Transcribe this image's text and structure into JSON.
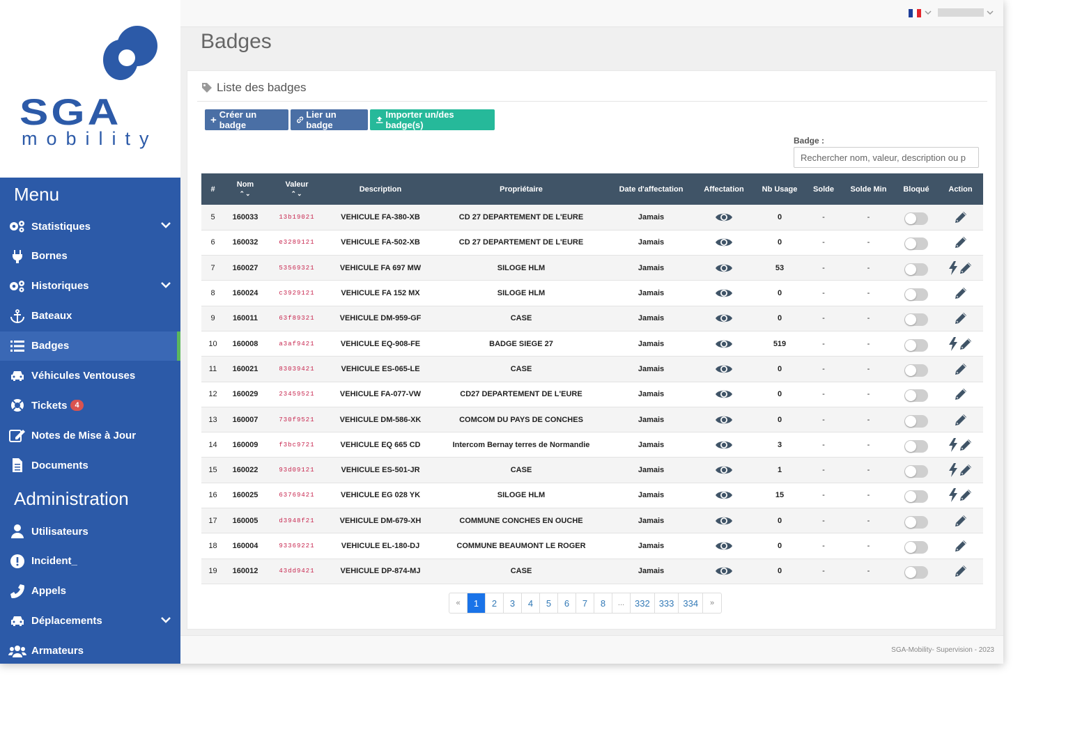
{
  "logo": {
    "brand": "SGA",
    "sub": "mobility"
  },
  "menu": {
    "title": "Menu",
    "items": [
      {
        "label": "Statistiques",
        "icon": "cogs-icon",
        "chevron": true
      },
      {
        "label": "Bornes",
        "icon": "plug-icon",
        "chevron": false
      },
      {
        "label": "Historiques",
        "icon": "cogs-icon",
        "chevron": true
      },
      {
        "label": "Bateaux",
        "icon": "anchor-icon",
        "chevron": false
      },
      {
        "label": "Badges",
        "icon": "list-icon",
        "chevron": false,
        "active": true
      },
      {
        "label": "Véhicules Ventouses",
        "icon": "car-icon",
        "chevron": false
      },
      {
        "label": "Tickets",
        "icon": "lifebuoy-icon",
        "chevron": false,
        "badge": "4"
      },
      {
        "label": "Notes de Mise à Jour",
        "icon": "edit-icon",
        "chevron": false
      },
      {
        "label": "Documents",
        "icon": "file-icon",
        "chevron": false
      }
    ]
  },
  "admin": {
    "title": "Administration",
    "items": [
      {
        "label": "Utilisateurs",
        "icon": "user-icon",
        "chevron": false
      },
      {
        "label": "Incident_",
        "icon": "exclamation-icon",
        "chevron": false
      },
      {
        "label": "Appels",
        "icon": "phone-icon",
        "chevron": false
      },
      {
        "label": "Déplacements",
        "icon": "car-icon",
        "chevron": true
      },
      {
        "label": "Armateurs",
        "icon": "users-icon",
        "chevron": false
      }
    ]
  },
  "page": {
    "title": "Badges"
  },
  "panel": {
    "title": "Liste des badges",
    "buttons": {
      "create": "Créer un badge",
      "link": "Lier un badge",
      "import": "Importer un/des badge(s)"
    },
    "search": {
      "label": "Badge :",
      "placeholder": "Rechercher nom, valeur, description ou p"
    }
  },
  "table": {
    "headers": [
      "#",
      "Nom",
      "Valeur",
      "Description",
      "Propriétaire",
      "Date d'affectation",
      "Affectation",
      "Nb Usage",
      "Solde",
      "Solde Min",
      "Bloqué",
      "Action"
    ],
    "rows": [
      {
        "id": "5",
        "nom": "160033",
        "valeur": "13b19021",
        "description": "VEHICULE FA-380-XB",
        "proprietaire": "CD 27 DEPARTEMENT DE L'EURE",
        "date": "Jamais",
        "usage": "0",
        "solde": "-",
        "solde_min": "-",
        "bolt": false
      },
      {
        "id": "6",
        "nom": "160032",
        "valeur": "e3289121",
        "description": "VEHICULE FA-502-XB",
        "proprietaire": "CD 27 DEPARTEMENT DE L'EURE",
        "date": "Jamais",
        "usage": "0",
        "solde": "-",
        "solde_min": "-",
        "bolt": false
      },
      {
        "id": "7",
        "nom": "160027",
        "valeur": "53569321",
        "description": "VEHICULE FA 697 MW",
        "proprietaire": "SILOGE HLM",
        "date": "Jamais",
        "usage": "53",
        "solde": "-",
        "solde_min": "-",
        "bolt": true
      },
      {
        "id": "8",
        "nom": "160024",
        "valeur": "c3929121",
        "description": "VEHICULE FA 152 MX",
        "proprietaire": "SILOGE HLM",
        "date": "Jamais",
        "usage": "0",
        "solde": "-",
        "solde_min": "-",
        "bolt": false
      },
      {
        "id": "9",
        "nom": "160011",
        "valeur": "63f89321",
        "description": "VEHICULE DM-959-GF",
        "proprietaire": "CASE",
        "date": "Jamais",
        "usage": "0",
        "solde": "-",
        "solde_min": "-",
        "bolt": false
      },
      {
        "id": "10",
        "nom": "160008",
        "valeur": "a3af9421",
        "description": "VEHICULE EQ-908-FE",
        "proprietaire": "BADGE SIEGE 27",
        "date": "Jamais",
        "usage": "519",
        "solde": "-",
        "solde_min": "-",
        "bolt": true
      },
      {
        "id": "11",
        "nom": "160021",
        "valeur": "83039421",
        "description": "VEHICULE ES-065-LE",
        "proprietaire": "CASE",
        "date": "Jamais",
        "usage": "0",
        "solde": "-",
        "solde_min": "-",
        "bolt": false
      },
      {
        "id": "12",
        "nom": "160029",
        "valeur": "23459521",
        "description": "VEHICULE FA-077-VW",
        "proprietaire": "CD27 DEPARTEMENT DE L'EURE",
        "date": "Jamais",
        "usage": "0",
        "solde": "-",
        "solde_min": "-",
        "bolt": false
      },
      {
        "id": "13",
        "nom": "160007",
        "valeur": "730f9521",
        "description": "VEHICULE DM-586-XK",
        "proprietaire": "COMCOM DU PAYS DE CONCHES",
        "date": "Jamais",
        "usage": "0",
        "solde": "-",
        "solde_min": "-",
        "bolt": false
      },
      {
        "id": "14",
        "nom": "160009",
        "valeur": "f3bc9721",
        "description": "VEHICULE EQ 665 CD",
        "proprietaire": "Intercom Bernay terres de Normandie",
        "date": "Jamais",
        "usage": "3",
        "solde": "-",
        "solde_min": "-",
        "bolt": true
      },
      {
        "id": "15",
        "nom": "160022",
        "valeur": "93d09121",
        "description": "VEHICULE ES-501-JR",
        "proprietaire": "CASE",
        "date": "Jamais",
        "usage": "1",
        "solde": "-",
        "solde_min": "-",
        "bolt": true
      },
      {
        "id": "16",
        "nom": "160025",
        "valeur": "63769421",
        "description": "VEHICULE EG 028 YK",
        "proprietaire": "SILOGE HLM",
        "date": "Jamais",
        "usage": "15",
        "solde": "-",
        "solde_min": "-",
        "bolt": true
      },
      {
        "id": "17",
        "nom": "160005",
        "valeur": "d3948f21",
        "description": "VEHICULE DM-679-XH",
        "proprietaire": "COMMUNE CONCHES EN OUCHE",
        "date": "Jamais",
        "usage": "0",
        "solde": "-",
        "solde_min": "-",
        "bolt": false
      },
      {
        "id": "18",
        "nom": "160004",
        "valeur": "93369221",
        "description": "VEHICULE EL-180-DJ",
        "proprietaire": "COMMUNE BEAUMONT LE ROGER",
        "date": "Jamais",
        "usage": "0",
        "solde": "-",
        "solde_min": "-",
        "bolt": false
      },
      {
        "id": "19",
        "nom": "160012",
        "valeur": "43dd9421",
        "description": "VEHICULE DP-874-MJ",
        "proprietaire": "CASE",
        "date": "Jamais",
        "usage": "0",
        "solde": "-",
        "solde_min": "-",
        "bolt": false
      }
    ]
  },
  "pagination": [
    "«",
    "1",
    "2",
    "3",
    "4",
    "5",
    "6",
    "7",
    "8",
    "...",
    "332",
    "333",
    "334",
    "»"
  ],
  "pagination_active": "1",
  "footer": "SGA-Mobility- Supervision - 2023",
  "colors": {
    "sidebar": "#2c5aa8",
    "header": "#405467",
    "accent_green": "#26b99a",
    "button_blue": "#4a6fa5"
  }
}
